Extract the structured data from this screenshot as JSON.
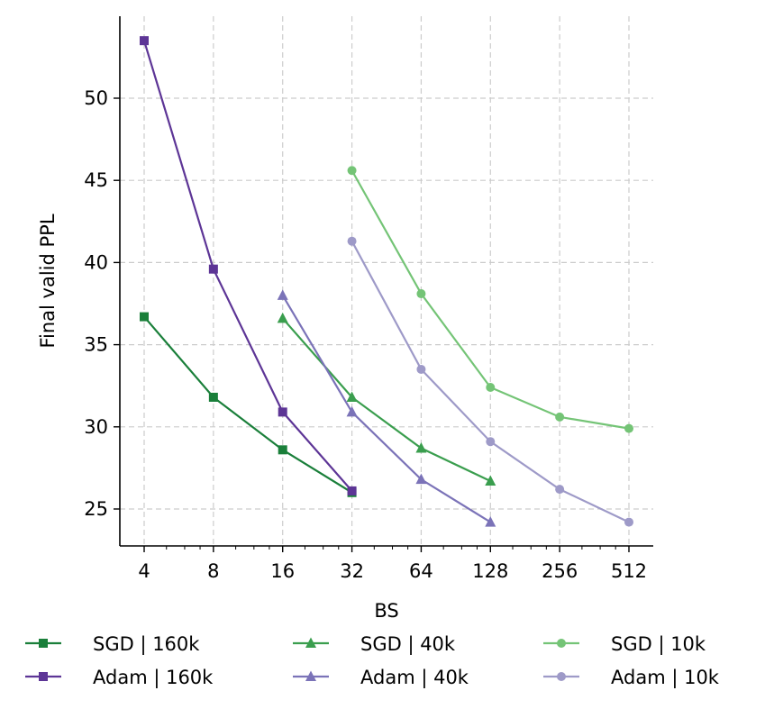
{
  "chart_data": {
    "type": "line",
    "title": "",
    "xlabel": "BS",
    "ylabel": "Final valid PPL",
    "xscale": "log2",
    "xlim": [
      3.4,
      600
    ],
    "ylim": [
      22.5,
      55
    ],
    "x_ticks": [
      4,
      8,
      16,
      32,
      64,
      128,
      256,
      512
    ],
    "x_tick_labels": [
      "4",
      "8",
      "16",
      "32",
      "64",
      "128",
      "256",
      "512"
    ],
    "y_ticks": [
      25,
      30,
      35,
      40,
      45,
      50
    ],
    "y_tick_labels": [
      "25",
      "30",
      "35",
      "40",
      "45",
      "50"
    ],
    "grid": true,
    "legend_position": "bottom",
    "series": [
      {
        "name": "SGD | 160k",
        "color": "#1a7f3a",
        "marker": "square",
        "x": [
          4,
          8,
          16,
          32
        ],
        "values": [
          36.7,
          31.8,
          28.6,
          26.0
        ]
      },
      {
        "name": "SGD | 40k",
        "color": "#3a9e4e",
        "marker": "triangle",
        "x": [
          16,
          32,
          64,
          128
        ],
        "values": [
          36.6,
          31.8,
          28.7,
          26.7
        ]
      },
      {
        "name": "SGD | 10k",
        "color": "#74c476",
        "marker": "circle",
        "x": [
          32,
          64,
          128,
          256,
          512
        ],
        "values": [
          45.6,
          38.1,
          32.4,
          30.6,
          29.9
        ]
      },
      {
        "name": "Adam | 160k",
        "color": "#5d3596",
        "marker": "square",
        "x": [
          4,
          8,
          16,
          32
        ],
        "values": [
          53.5,
          39.6,
          30.9,
          26.1
        ]
      },
      {
        "name": "Adam | 40k",
        "color": "#7b73b8",
        "marker": "triangle",
        "x": [
          16,
          32,
          64,
          128
        ],
        "values": [
          38.0,
          30.9,
          26.8,
          24.2
        ]
      },
      {
        "name": "Adam | 10k",
        "color": "#9e9ac8",
        "marker": "circle",
        "x": [
          32,
          64,
          128,
          256,
          512
        ],
        "values": [
          41.3,
          33.5,
          29.1,
          26.2,
          24.2
        ]
      }
    ]
  }
}
